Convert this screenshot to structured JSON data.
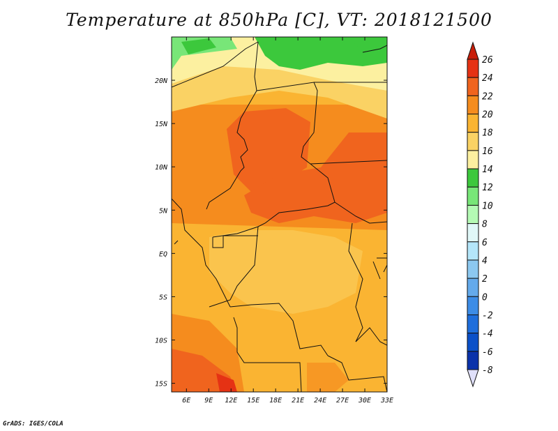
{
  "title": "Temperature at 850hPa [C], VT: 2018121500",
  "credit": "GrADS: IGES/COLA",
  "map": {
    "variable": "Temperature at 850hPa",
    "units": "C",
    "valid_time": "2018121500",
    "lon_range": [
      4,
      33
    ],
    "lat_range": [
      -16,
      25
    ],
    "lon_ticks": [
      "6E",
      "9E",
      "12E",
      "15E",
      "18E",
      "21E",
      "24E",
      "27E",
      "30E",
      "33E"
    ],
    "lat_ticks": [
      "20N",
      "15N",
      "10N",
      "5N",
      "EQ",
      "5S",
      "10S",
      "15S"
    ],
    "regions": [
      {
        "name": "saharan-green-band",
        "temp_range": "12-14"
      },
      {
        "name": "sahel-yellow-band",
        "temp_range": "14-18"
      },
      {
        "name": "chad-hot-core",
        "temp_range": "22-24"
      },
      {
        "name": "central-african-hot-core",
        "temp_range": "22-24"
      },
      {
        "name": "congo-basin",
        "temp_range": "18-20"
      },
      {
        "name": "southern-angola-hot-area",
        "temp_range": "22-26"
      }
    ]
  },
  "colorbar": {
    "labels": [
      "26",
      "24",
      "22",
      "20",
      "18",
      "16",
      "14",
      "12",
      "10",
      "8",
      "6",
      "4",
      "2",
      "0",
      "-2",
      "-4",
      "-6",
      "-8"
    ],
    "colors": [
      "#c81e0a",
      "#e53214",
      "#f0641e",
      "#f58c1e",
      "#fab432",
      "#fad264",
      "#fcf0a0",
      "#3cc83c",
      "#78e678",
      "#b4fab4",
      "#e0f8f8",
      "#b4e6fa",
      "#8cc8f0",
      "#64aaeb",
      "#3c8ce6",
      "#1e6edc",
      "#0a50c8",
      "#0a32aa",
      "#0a1464",
      "#e0e0fa"
    ]
  }
}
